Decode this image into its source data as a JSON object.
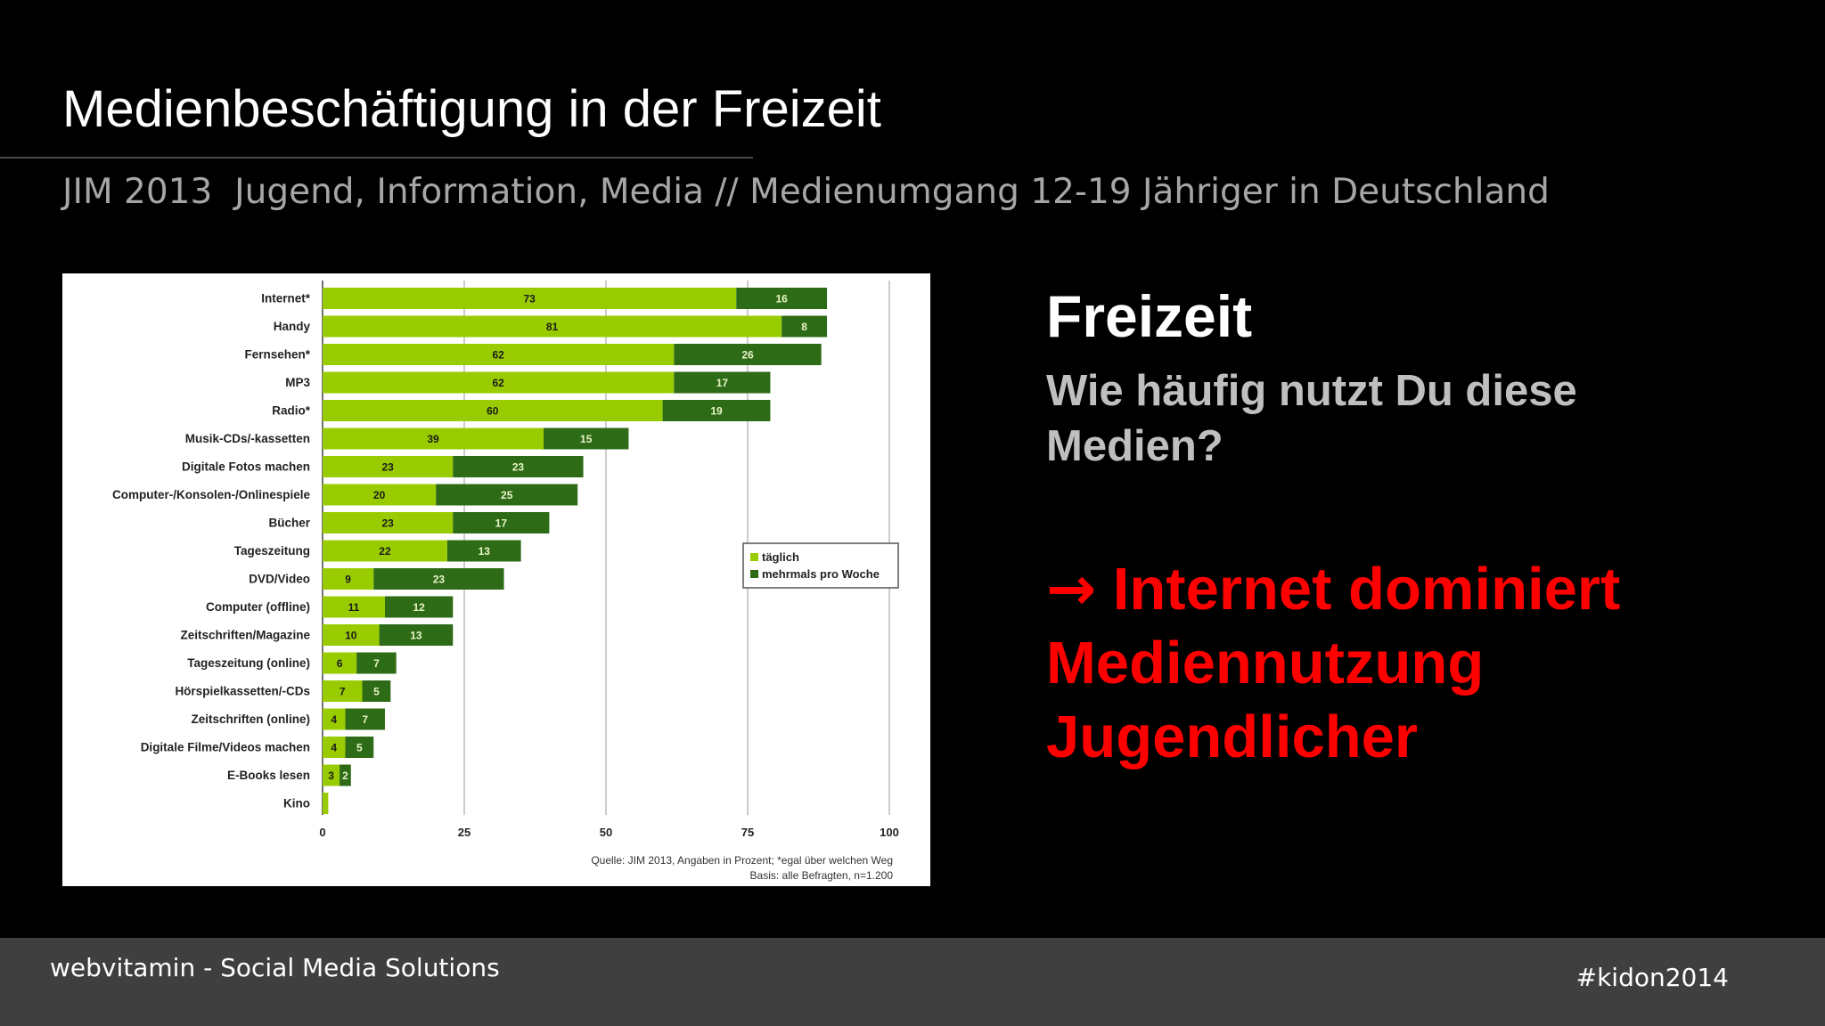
{
  "slide": {
    "title": "Medienbeschäftigung in der Freizeit",
    "subtitle": "JIM 2013  Jugend, Information, Media // Medienumgang 12-19 Jähriger in Deutschland",
    "heading": "Freizeit",
    "question": "Wie häufig nutzt Du diese Medien?",
    "conclusion_arrow": "→",
    "conclusion_text": " Internet dominiert Mediennutzung Jugendlicher"
  },
  "footer": {
    "left": "webvitamin - Social Media Solutions",
    "right": "#kidon2014"
  },
  "colors": {
    "accent_red": "#ff0000",
    "bar_light": "#99cc00",
    "bar_dark": "#2e6b16"
  },
  "chart_data": {
    "type": "bar",
    "orientation": "horizontal",
    "stacked": true,
    "categories": [
      "Internet*",
      "Handy",
      "Fernsehen*",
      "MP3",
      "Radio*",
      "Musik-CDs/-kassetten",
      "Digitale Fotos machen",
      "Computer-/Konsolen-/Onlinespiele",
      "Bücher",
      "Tageszeitung",
      "DVD/Video",
      "Computer (offline)",
      "Zeitschriften/Magazine",
      "Tageszeitung (online)",
      "Hörspielkassetten/-CDs",
      "Zeitschriften (online)",
      "Digitale Filme/Videos machen",
      "E-Books lesen",
      "Kino"
    ],
    "series": [
      {
        "name": "täglich",
        "values": [
          73,
          81,
          62,
          62,
          60,
          39,
          23,
          20,
          23,
          22,
          9,
          11,
          10,
          6,
          7,
          4,
          4,
          3,
          1
        ]
      },
      {
        "name": "mehrmals pro Woche",
        "values": [
          16,
          8,
          26,
          17,
          19,
          15,
          23,
          25,
          17,
          13,
          23,
          12,
          13,
          7,
          5,
          7,
          5,
          2,
          0
        ]
      }
    ],
    "labels": [
      [
        "73",
        "16"
      ],
      [
        "81",
        "8"
      ],
      [
        "62",
        "26"
      ],
      [
        "62",
        "17"
      ],
      [
        "60",
        "19"
      ],
      [
        "39",
        "15"
      ],
      [
        "23",
        "23"
      ],
      [
        "20",
        "25"
      ],
      [
        "23",
        "17"
      ],
      [
        "22",
        "13"
      ],
      [
        "9",
        "23"
      ],
      [
        "11",
        "12"
      ],
      [
        "10",
        "13"
      ],
      [
        "6",
        "7"
      ],
      [
        "7",
        "5"
      ],
      [
        "4",
        "7"
      ],
      [
        "4",
        "5"
      ],
      [
        "3",
        "2"
      ],
      [
        "",
        ""
      ]
    ],
    "x_ticks": [
      "0",
      "25",
      "50",
      "75",
      "100"
    ],
    "xlim": [
      0,
      100
    ],
    "grid": true,
    "legend_position": "right",
    "source_line1": "Quelle: JIM 2013, Angaben in Prozent; *egal über welchen Weg",
    "source_line2": "Basis: alle Befragten, n=1.200"
  }
}
